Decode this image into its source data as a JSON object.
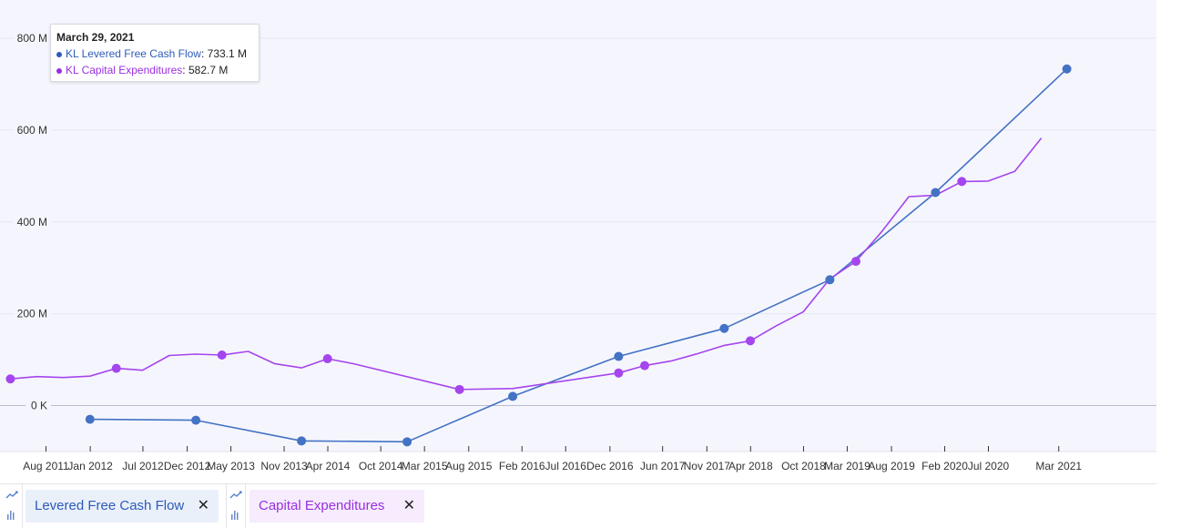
{
  "chart_data": {
    "type": "line",
    "y_ticks": [
      "800 M",
      "600 M",
      "400 M",
      "200 M",
      "0 K"
    ],
    "y_tick_values": [
      800,
      600,
      400,
      200,
      0
    ],
    "ylim": [
      -100,
      880
    ],
    "x_ticks": [
      "Aug 2011",
      "Jan 2012",
      "Jul 2012",
      "Dec 2012",
      "May 2013",
      "Nov 2013",
      "Apr 2014",
      "Oct 2014",
      "Mar 2015",
      "Aug 2015",
      "Feb 2016",
      "Jul 2016",
      "Dec 2016",
      "Jun 2017",
      "Nov 2017",
      "Apr 2018",
      "Oct 2018",
      "Mar 2019",
      "Aug 2019",
      "Feb 2020",
      "Jul 2020",
      "Mar 2021"
    ],
    "x_tick_dates": [
      "2011-08-01",
      "2012-01-01",
      "2012-07-01",
      "2012-12-01",
      "2013-05-01",
      "2013-11-01",
      "2014-04-01",
      "2014-10-01",
      "2015-03-01",
      "2015-08-01",
      "2016-02-01",
      "2016-07-01",
      "2016-12-01",
      "2017-06-01",
      "2017-11-01",
      "2018-04-01",
      "2018-10-01",
      "2019-03-01",
      "2019-08-01",
      "2020-02-01",
      "2020-07-01",
      "2021-03-01"
    ],
    "grid": true,
    "unit": "M",
    "series": [
      {
        "name": "KL Levered Free Cash Flow",
        "color": "#4472C4",
        "points": [
          {
            "x": "2011-12-31",
            "y": -30,
            "marker": true
          },
          {
            "x": "2012-12-31",
            "y": -32,
            "marker": true
          },
          {
            "x": "2013-12-31",
            "y": -77,
            "marker": true
          },
          {
            "x": "2014-12-31",
            "y": -79,
            "marker": true
          },
          {
            "x": "2015-12-31",
            "y": 20,
            "marker": true
          },
          {
            "x": "2016-12-31",
            "y": 107,
            "marker": true
          },
          {
            "x": "2017-12-31",
            "y": 168,
            "marker": true
          },
          {
            "x": "2018-12-31",
            "y": 274,
            "marker": true
          },
          {
            "x": "2019-12-31",
            "y": 464,
            "marker": true
          },
          {
            "x": "2021-03-29",
            "y": 733.1,
            "marker": true
          }
        ]
      },
      {
        "name": "KL Capital Expenditures",
        "color": "#A545EE",
        "points": [
          {
            "x": "2011-03-31",
            "y": 58,
            "marker": true
          },
          {
            "x": "2011-06-30",
            "y": 63,
            "marker": false
          },
          {
            "x": "2011-09-30",
            "y": 61,
            "marker": false
          },
          {
            "x": "2011-12-31",
            "y": 64,
            "marker": false
          },
          {
            "x": "2012-03-31",
            "y": 81,
            "marker": true
          },
          {
            "x": "2012-06-30",
            "y": 77,
            "marker": false
          },
          {
            "x": "2012-09-30",
            "y": 109,
            "marker": false
          },
          {
            "x": "2012-12-31",
            "y": 112,
            "marker": false
          },
          {
            "x": "2013-03-31",
            "y": 110,
            "marker": true
          },
          {
            "x": "2013-06-30",
            "y": 118,
            "marker": false
          },
          {
            "x": "2013-09-30",
            "y": 91,
            "marker": false
          },
          {
            "x": "2013-12-31",
            "y": 82,
            "marker": false
          },
          {
            "x": "2014-03-31",
            "y": 102,
            "marker": true
          },
          {
            "x": "2014-06-30",
            "y": 91,
            "marker": false
          },
          {
            "x": "2015-06-30",
            "y": 35,
            "marker": true
          },
          {
            "x": "2015-12-31",
            "y": 37,
            "marker": false
          },
          {
            "x": "2016-12-31",
            "y": 71,
            "marker": true
          },
          {
            "x": "2017-03-31",
            "y": 87,
            "marker": true
          },
          {
            "x": "2017-06-30",
            "y": 97,
            "marker": false
          },
          {
            "x": "2017-09-30",
            "y": 113,
            "marker": false
          },
          {
            "x": "2017-12-31",
            "y": 131,
            "marker": false
          },
          {
            "x": "2018-03-31",
            "y": 141,
            "marker": true
          },
          {
            "x": "2018-06-30",
            "y": 174,
            "marker": false
          },
          {
            "x": "2018-09-30",
            "y": 204,
            "marker": false
          },
          {
            "x": "2018-12-31",
            "y": 276,
            "marker": false
          },
          {
            "x": "2019-03-31",
            "y": 314,
            "marker": true
          },
          {
            "x": "2019-06-30",
            "y": 380,
            "marker": false
          },
          {
            "x": "2019-09-30",
            "y": 455,
            "marker": false
          },
          {
            "x": "2019-12-31",
            "y": 458,
            "marker": false
          },
          {
            "x": "2020-03-31",
            "y": 488,
            "marker": true
          },
          {
            "x": "2020-06-30",
            "y": 489,
            "marker": false
          },
          {
            "x": "2020-09-30",
            "y": 510,
            "marker": false
          },
          {
            "x": "2020-12-31",
            "y": 582.7,
            "marker": false
          }
        ]
      }
    ]
  },
  "tooltip": {
    "date": "March 29, 2021",
    "rows": [
      {
        "label": "KL Levered Free Cash Flow",
        "value": "733.1 M",
        "color": "#2E5BBA"
      },
      {
        "label": "KL Capital Expenditures",
        "value": "582.7 M",
        "color": "#9A2FE0"
      }
    ]
  },
  "legend": {
    "items": [
      {
        "label": "Levered Free Cash Flow",
        "icon": "line-chart-icon",
        "close_icon": "close-icon",
        "bg": "#EAF0FA",
        "text_color": "#2E5BBA"
      },
      {
        "label": "Capital Expenditures",
        "icon": "line-chart-icon",
        "close_icon": "close-icon",
        "bg": "#F6ECFD",
        "text_color": "#9A2FE0"
      }
    ]
  },
  "colors": {
    "plot_bg": "#F5F6FD",
    "gridline": "#E4E6F2",
    "zero_line": "#B9BDD0"
  }
}
